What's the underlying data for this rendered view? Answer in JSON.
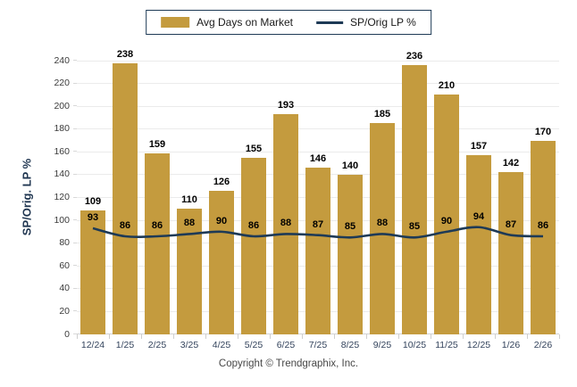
{
  "legend": {
    "bar_label": "Avg Days on Market",
    "line_label": "SP/Orig LP %"
  },
  "y_axis_title": "SP/Orig. LP %",
  "footer_text": "Copyright © Trendgraphix, Inc.",
  "colors": {
    "bar": "#c49b3e",
    "line": "#1e3a56"
  },
  "chart_data": {
    "type": "bar",
    "subtype": "bar-with-line-overlay",
    "categories": [
      "12/24",
      "1/25",
      "2/25",
      "3/25",
      "4/25",
      "5/25",
      "6/25",
      "7/25",
      "8/25",
      "9/25",
      "10/25",
      "11/25",
      "12/25",
      "1/26",
      "2/26"
    ],
    "series": [
      {
        "name": "Avg Days on Market",
        "type": "bar",
        "values": [
          109,
          238,
          159,
          110,
          126,
          155,
          193,
          146,
          140,
          185,
          236,
          210,
          157,
          142,
          170
        ]
      },
      {
        "name": "SP/Orig LP %",
        "type": "line",
        "values": [
          93,
          86,
          86,
          88,
          90,
          86,
          88,
          87,
          85,
          88,
          85,
          90,
          94,
          87,
          86
        ]
      }
    ],
    "title": "",
    "xlabel": "",
    "ylabel": "SP/Orig. LP %",
    "ylim": [
      0,
      240
    ],
    "ytick_step": 20,
    "grid": true,
    "legend_position": "top",
    "data_labels": true
  }
}
